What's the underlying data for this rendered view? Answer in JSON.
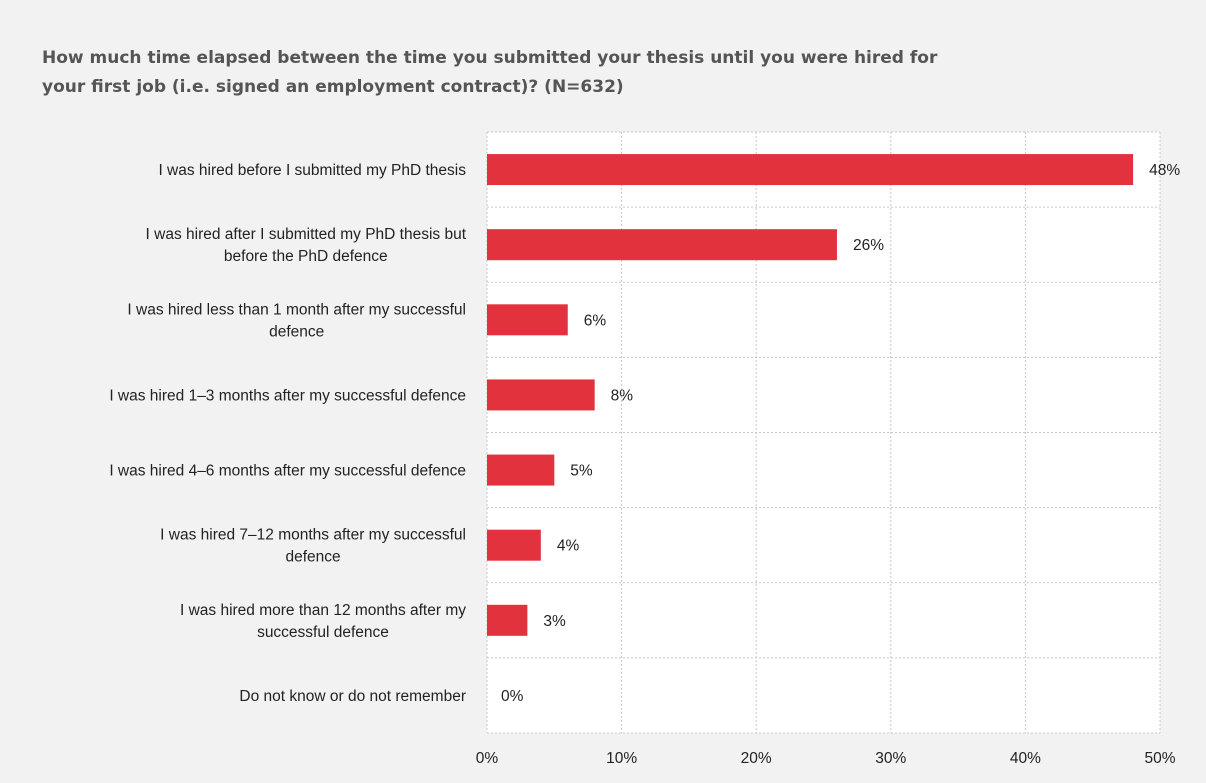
{
  "chart_data": {
    "type": "bar",
    "orientation": "horizontal",
    "title": "How much time elapsed between the time you submitted your thesis until you were hired for your first job (i.e. signed an employment contract)? (N=632)",
    "categories": [
      [
        "I was hired before I submitted my PhD thesis"
      ],
      [
        "I was hired after I submitted my PhD thesis but",
        "before the PhD defence"
      ],
      [
        "I was hired less than 1 month after my successful",
        "defence"
      ],
      [
        "I was hired 1–3 months after my successful defence"
      ],
      [
        "I was hired 4–6 months after my successful defence"
      ],
      [
        "I was hired 7–12 months after my successful",
        "defence"
      ],
      [
        "I was hired more than 12 months after my",
        "successful defence"
      ],
      [
        "Do not know or do not remember"
      ]
    ],
    "values": [
      48,
      26,
      6,
      8,
      5,
      4,
      3,
      0
    ],
    "value_labels": [
      "48%",
      "26%",
      "6%",
      "8%",
      "5%",
      "4%",
      "3%",
      "0%"
    ],
    "xlim": [
      0,
      50
    ],
    "xticks": [
      0,
      10,
      20,
      30,
      40,
      50
    ],
    "xtick_labels": [
      "0%",
      "10%",
      "20%",
      "30%",
      "40%",
      "50%"
    ],
    "grid": true,
    "legend": false,
    "bar_color": "#e2323e"
  }
}
